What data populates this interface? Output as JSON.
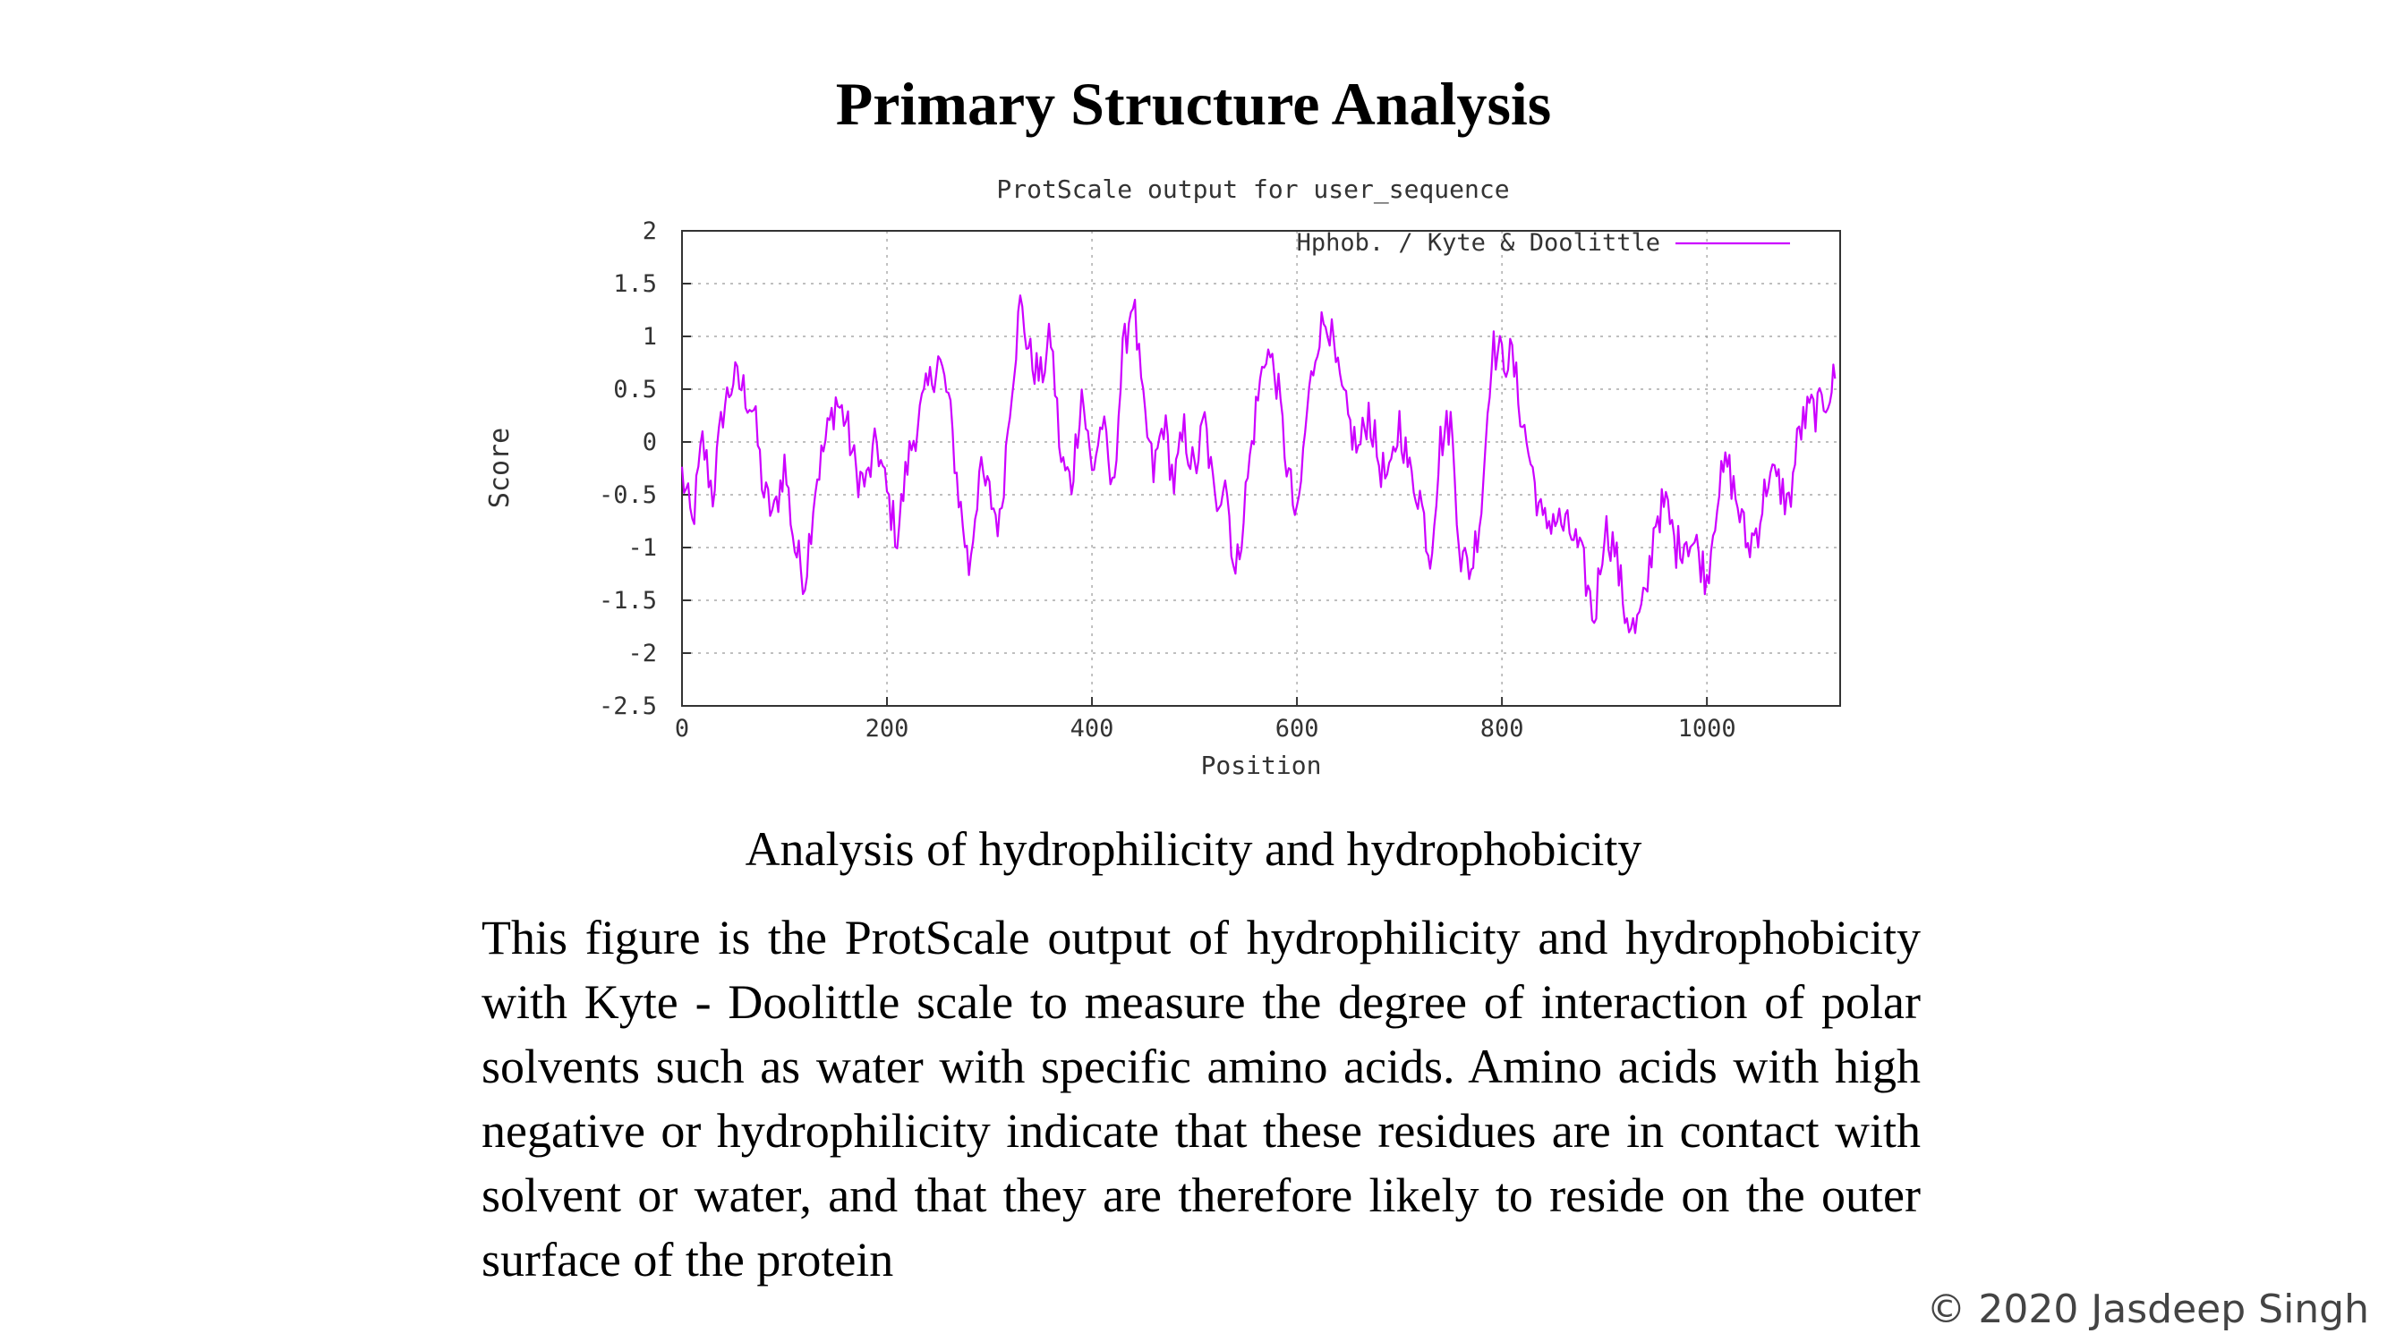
{
  "slide": {
    "title": "Primary Structure Analysis",
    "caption": "Analysis of hydrophilicity and hydrophobicity",
    "paragraph": "This figure is the ProtScale output of hydrophilicity and hydrophobicity with Kyte - Doolittle scale to measure the degree of interaction of polar solvents such as water with specific amino acids. Amino acids with high negative or hydrophilicity indicate that these residues are in contact with solvent or water, and that they are therefore likely to reside on the outer surface of the protein",
    "copyright": "© 2020 Jasdeep Singh"
  },
  "chart_data": {
    "type": "line",
    "title": "ProtScale output for user_sequence",
    "xlabel": "Position",
    "ylabel": "Score",
    "xlim": [
      0,
      1130
    ],
    "ylim": [
      -2.5,
      2
    ],
    "xticks": [
      0,
      200,
      400,
      600,
      800,
      1000
    ],
    "yticks": [
      2,
      1.5,
      1,
      0.5,
      0,
      -0.5,
      -1,
      -1.5,
      -2,
      -2.5
    ],
    "ytick_labels": [
      "2",
      "1.5",
      "1",
      "0.5",
      "0",
      "-0.5",
      "-1",
      "-1.5",
      "-2",
      "-2.5"
    ],
    "grid": true,
    "legend_position": "top-right",
    "color": "#cc00ff",
    "series": [
      {
        "name": "Hphob. / Kyte & Doolittle",
        "x": [
          0,
          10,
          20,
          30,
          40,
          50,
          60,
          70,
          80,
          90,
          100,
          110,
          120,
          130,
          140,
          150,
          160,
          170,
          180,
          190,
          200,
          210,
          220,
          230,
          240,
          250,
          260,
          270,
          280,
          290,
          300,
          310,
          320,
          330,
          340,
          350,
          360,
          370,
          380,
          390,
          400,
          410,
          420,
          430,
          440,
          450,
          460,
          470,
          480,
          490,
          500,
          510,
          520,
          530,
          540,
          550,
          560,
          570,
          580,
          590,
          600,
          610,
          620,
          630,
          640,
          650,
          660,
          670,
          680,
          690,
          700,
          710,
          720,
          730,
          740,
          750,
          760,
          770,
          780,
          790,
          800,
          810,
          820,
          830,
          840,
          850,
          860,
          870,
          880,
          890,
          900,
          910,
          920,
          930,
          940,
          950,
          960,
          970,
          980,
          990,
          1000,
          1010,
          1020,
          1030,
          1040,
          1050,
          1060,
          1070,
          1080,
          1090,
          1100,
          1110,
          1120,
          1125
        ],
        "y": [
          -0.3,
          -0.8,
          0.0,
          -0.5,
          0.3,
          0.6,
          0.5,
          0.3,
          -0.5,
          -0.7,
          -0.2,
          -1.0,
          -1.3,
          -0.4,
          0.0,
          0.4,
          0.2,
          -0.3,
          -0.4,
          0.0,
          -0.5,
          -0.9,
          -0.2,
          0.2,
          0.5,
          0.8,
          0.4,
          -0.5,
          -1.2,
          -0.3,
          -0.5,
          -0.8,
          0.4,
          1.3,
          0.8,
          0.6,
          1.0,
          -0.2,
          -0.4,
          0.5,
          -0.3,
          0.2,
          -0.5,
          0.8,
          1.4,
          0.3,
          -0.3,
          0.2,
          -0.4,
          0.1,
          -0.3,
          0.2,
          -0.6,
          -0.3,
          -1.3,
          -0.5,
          0.3,
          0.9,
          0.6,
          -0.2,
          -0.8,
          0.3,
          1.0,
          1.2,
          0.6,
          0.2,
          -0.1,
          0.3,
          -0.2,
          -0.4,
          0.2,
          -0.3,
          -0.5,
          -1.1,
          0.0,
          0.2,
          -1.1,
          -1.2,
          -0.6,
          0.9,
          0.8,
          0.8,
          0.2,
          -0.3,
          -0.8,
          -0.7,
          -0.8,
          -0.9,
          -1.2,
          -1.7,
          -0.8,
          -1.0,
          -1.6,
          -1.8,
          -1.5,
          -0.7,
          -0.6,
          -1.0,
          -0.9,
          -1.0,
          -1.3,
          -0.5,
          -0.2,
          -0.6,
          -1.0,
          -0.8,
          -0.3,
          -0.4,
          -0.6,
          0.1,
          0.3,
          0.3,
          0.5,
          0.6
        ]
      }
    ]
  }
}
